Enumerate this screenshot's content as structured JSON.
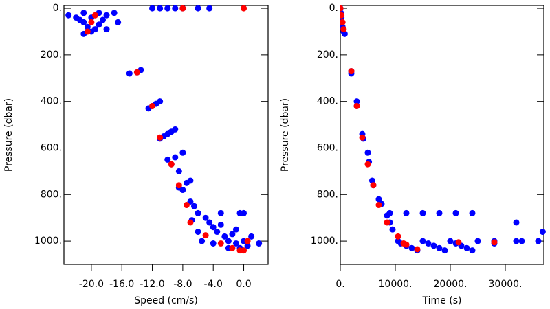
{
  "chart_data": [
    {
      "type": "scatter",
      "xlabel": "Speed (cm/s)",
      "ylabel": "Pressure (dbar)",
      "xlim": [
        -23.6,
        3.2
      ],
      "ylim": [
        1100,
        -12
      ],
      "xticks": [
        {
          "value": -20,
          "label": "-20.0"
        },
        {
          "value": -16,
          "label": "-16.0"
        },
        {
          "value": -12,
          "label": "-12.0"
        },
        {
          "value": -8,
          "label": "-8.0"
        },
        {
          "value": -4,
          "label": "-4.0"
        },
        {
          "value": 0,
          "label": "0.0"
        }
      ],
      "yticks": [
        {
          "value": 0,
          "label": "0."
        },
        {
          "value": 200,
          "label": "200."
        },
        {
          "value": 400,
          "label": "400."
        },
        {
          "value": 600,
          "label": "600."
        },
        {
          "value": 800,
          "label": "800."
        },
        {
          "value": 1000,
          "label": "1000."
        }
      ],
      "series": [
        {
          "color": "#0000ff",
          "x": [
            -23,
            -22,
            -21.5,
            -21,
            -20.5,
            -20,
            -19.5,
            -19,
            -18.5,
            -18,
            -17,
            -16.5,
            -21,
            -19,
            -20,
            -18,
            -21,
            -12,
            -10,
            -8,
            -6,
            -4.5,
            -11,
            -9,
            -15,
            -14,
            -13.5,
            -12.5,
            -12,
            -11.5,
            -11,
            -11,
            -10.5,
            -10,
            -9.5,
            -9,
            -10,
            -9.5,
            -9,
            -8.5,
            -8,
            -8.5,
            -7.5,
            -7,
            -8,
            -7,
            -6.5,
            -6,
            -6.8,
            -5,
            -4.5,
            -4,
            -3.5,
            -3,
            -2.5,
            -2,
            -1.5,
            -1,
            -0.5,
            0,
            0.5,
            -0.5,
            0,
            -3,
            1,
            2,
            -1,
            -2,
            -5.5,
            -4,
            -6
          ],
          "values": [
            30,
            40,
            50,
            60,
            80,
            100,
            90,
            70,
            50,
            30,
            20,
            60,
            20,
            20,
            40,
            90,
            110,
            0,
            0,
            0,
            0,
            0,
            0,
            0,
            280,
            275,
            265,
            430,
            420,
            410,
            400,
            560,
            550,
            540,
            530,
            520,
            650,
            670,
            640,
            700,
            620,
            770,
            750,
            740,
            780,
            830,
            850,
            880,
            910,
            900,
            920,
            940,
            960,
            930,
            980,
            1000,
            970,
            1010,
            1030,
            1000,
            1020,
            880,
            880,
            880,
            980,
            1010,
            950,
            1030,
            1000,
            1010,
            960
          ]
        },
        {
          "color": "#ff0000",
          "x": [
            -19.5,
            -20,
            -20.5,
            -14,
            -12,
            -11,
            -9.5,
            -8.5,
            -7.5,
            -7,
            -5,
            -3,
            -1.5,
            0,
            0.5,
            -0.5,
            -8,
            0
          ],
          "values": [
            30,
            60,
            100,
            275,
            420,
            555,
            670,
            760,
            845,
            920,
            975,
            1010,
            1030,
            1040,
            1000,
            1040,
            0,
            0
          ]
        }
      ]
    },
    {
      "type": "scatter",
      "xlabel": "Time (s)",
      "ylabel": "Pressure (dbar)",
      "xlim": [
        0,
        37000
      ],
      "ylim": [
        1100,
        -12
      ],
      "xticks": [
        {
          "value": 0,
          "label": "0."
        },
        {
          "value": 10000,
          "label": "10000."
        },
        {
          "value": 20000,
          "label": "20000."
        },
        {
          "value": 30000,
          "label": "30000."
        }
      ],
      "yticks": [
        {
          "value": 0,
          "label": "0."
        },
        {
          "value": 200,
          "label": "200."
        },
        {
          "value": 400,
          "label": "400."
        },
        {
          "value": 600,
          "label": "600."
        },
        {
          "value": 800,
          "label": "800."
        },
        {
          "value": 1000,
          "label": "1000."
        }
      ],
      "series": [
        {
          "color": "#0000ff",
          "x": [
            0,
            100,
            200,
            300,
            400,
            600,
            800,
            2000,
            2000,
            3000,
            3000,
            4000,
            4200,
            5000,
            5200,
            5800,
            6000,
            7000,
            7500,
            8500,
            9000,
            9500,
            10500,
            11000,
            12000,
            13000,
            14000,
            15000,
            16000,
            17000,
            18000,
            19000,
            20000,
            21000,
            22000,
            23000,
            24000,
            25000,
            9000,
            12000,
            15000,
            18000,
            21000,
            24000,
            28000,
            28000,
            32000,
            32000,
            33000,
            36000,
            36800
          ],
          "values": [
            0,
            20,
            40,
            60,
            80,
            100,
            110,
            270,
            280,
            400,
            420,
            540,
            560,
            620,
            660,
            740,
            760,
            820,
            840,
            890,
            920,
            950,
            1000,
            1010,
            1020,
            1030,
            1040,
            1000,
            1010,
            1020,
            1030,
            1040,
            1000,
            1010,
            1020,
            1030,
            1040,
            1000,
            880,
            880,
            880,
            880,
            880,
            880,
            1000,
            1010,
            920,
            1000,
            1000,
            1000,
            960
          ]
        },
        {
          "color": "#ff0000",
          "x": [
            0,
            200,
            400,
            600,
            2000,
            3000,
            4000,
            5000,
            6000,
            7000,
            8500,
            10500,
            12000,
            14000,
            21500,
            28000,
            11500
          ],
          "values": [
            0,
            30,
            60,
            90,
            270,
            420,
            555,
            670,
            760,
            845,
            920,
            980,
            1015,
            1035,
            1005,
            1005,
            1010
          ]
        }
      ]
    }
  ]
}
